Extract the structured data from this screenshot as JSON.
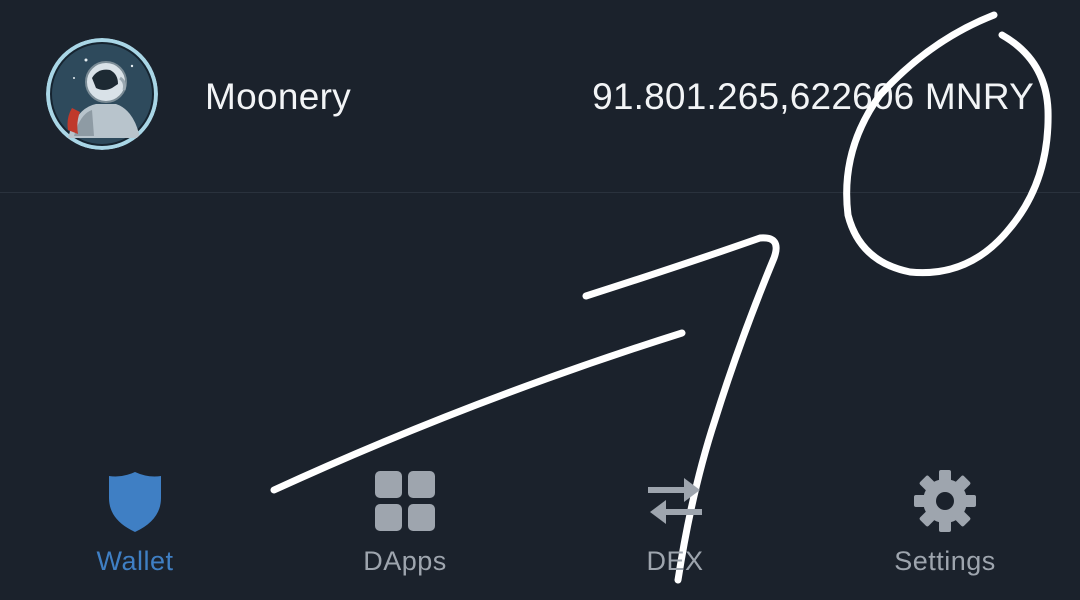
{
  "token": {
    "name": "Moonery",
    "balance": "91.801.265,622606 MNRY",
    "avatar_icon": "astronaut-avatar"
  },
  "nav": {
    "items": [
      {
        "label": "Wallet",
        "icon": "shield-icon",
        "active": true
      },
      {
        "label": "DApps",
        "icon": "grid-icon",
        "active": false
      },
      {
        "label": "DEX",
        "icon": "swap-arrows-icon",
        "active": false
      },
      {
        "label": "Settings",
        "icon": "gear-icon",
        "active": false
      }
    ]
  },
  "colors": {
    "background": "#1b222c",
    "text": "#f2f4f6",
    "nav_inactive": "#9ea5ae",
    "nav_active": "#3f7fc4",
    "annotation": "#ffffff"
  }
}
